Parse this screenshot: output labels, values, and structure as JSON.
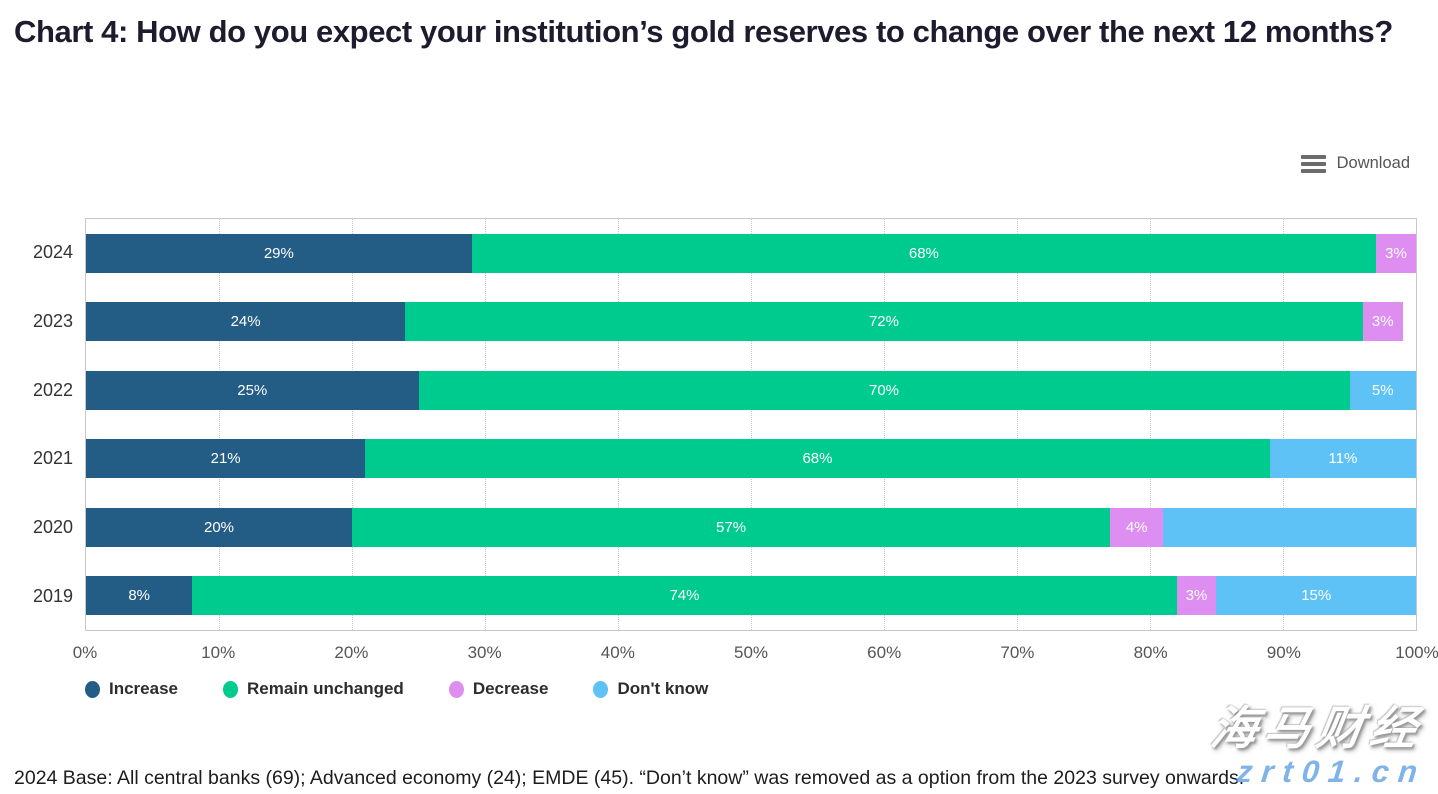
{
  "title": "Chart 4: How do you expect your institution’s gold reserves to change over the next 12 months?",
  "toolbar": {
    "download_label": "Download",
    "menu_icon": "hamburger-icon"
  },
  "chart_data": {
    "type": "bar",
    "orientation": "horizontal",
    "stacked": true,
    "title": "Chart 4: How do you expect your institution’s gold reserves to change over the next 12 months?",
    "categories": [
      "2024",
      "2023",
      "2022",
      "2021",
      "2020",
      "2019"
    ],
    "series": [
      {
        "name": "Increase",
        "color": "#235c85",
        "values": [
          29,
          24,
          25,
          21,
          20,
          8
        ]
      },
      {
        "name": "Remain unchanged",
        "color": "#00cb8e",
        "values": [
          68,
          72,
          70,
          68,
          57,
          74
        ]
      },
      {
        "name": "Decrease",
        "color": "#de8ef0",
        "values": [
          3,
          3,
          0,
          0,
          4,
          3
        ]
      },
      {
        "name": "Don't know",
        "color": "#5ec2f7",
        "values": [
          0,
          0,
          5,
          11,
          19,
          15
        ]
      }
    ],
    "data_labels": [
      [
        "29%",
        "68%",
        "3%",
        ""
      ],
      [
        "24%",
        "72%",
        "3%",
        ""
      ],
      [
        "25%",
        "70%",
        "",
        "5%"
      ],
      [
        "21%",
        "68%",
        "",
        "11%"
      ],
      [
        "20%",
        "57%",
        "4%",
        ""
      ],
      [
        "8%",
        "74%",
        "3%",
        "15%"
      ]
    ],
    "x_ticks": [
      "0%",
      "10%",
      "20%",
      "30%",
      "40%",
      "50%",
      "60%",
      "70%",
      "80%",
      "90%",
      "100%"
    ],
    "xlim": [
      0,
      100
    ],
    "xlabel": "",
    "ylabel": "",
    "grid": "vertical-dotted",
    "legend_position": "bottom"
  },
  "footnote": "2024 Base: All central banks (69); Advanced economy (24); EMDE (45). “Don’t know” was removed as a option from the 2023 survey onwards.",
  "watermark": {
    "cn_text": "海马财经",
    "url_text": "zrt01.cn"
  }
}
